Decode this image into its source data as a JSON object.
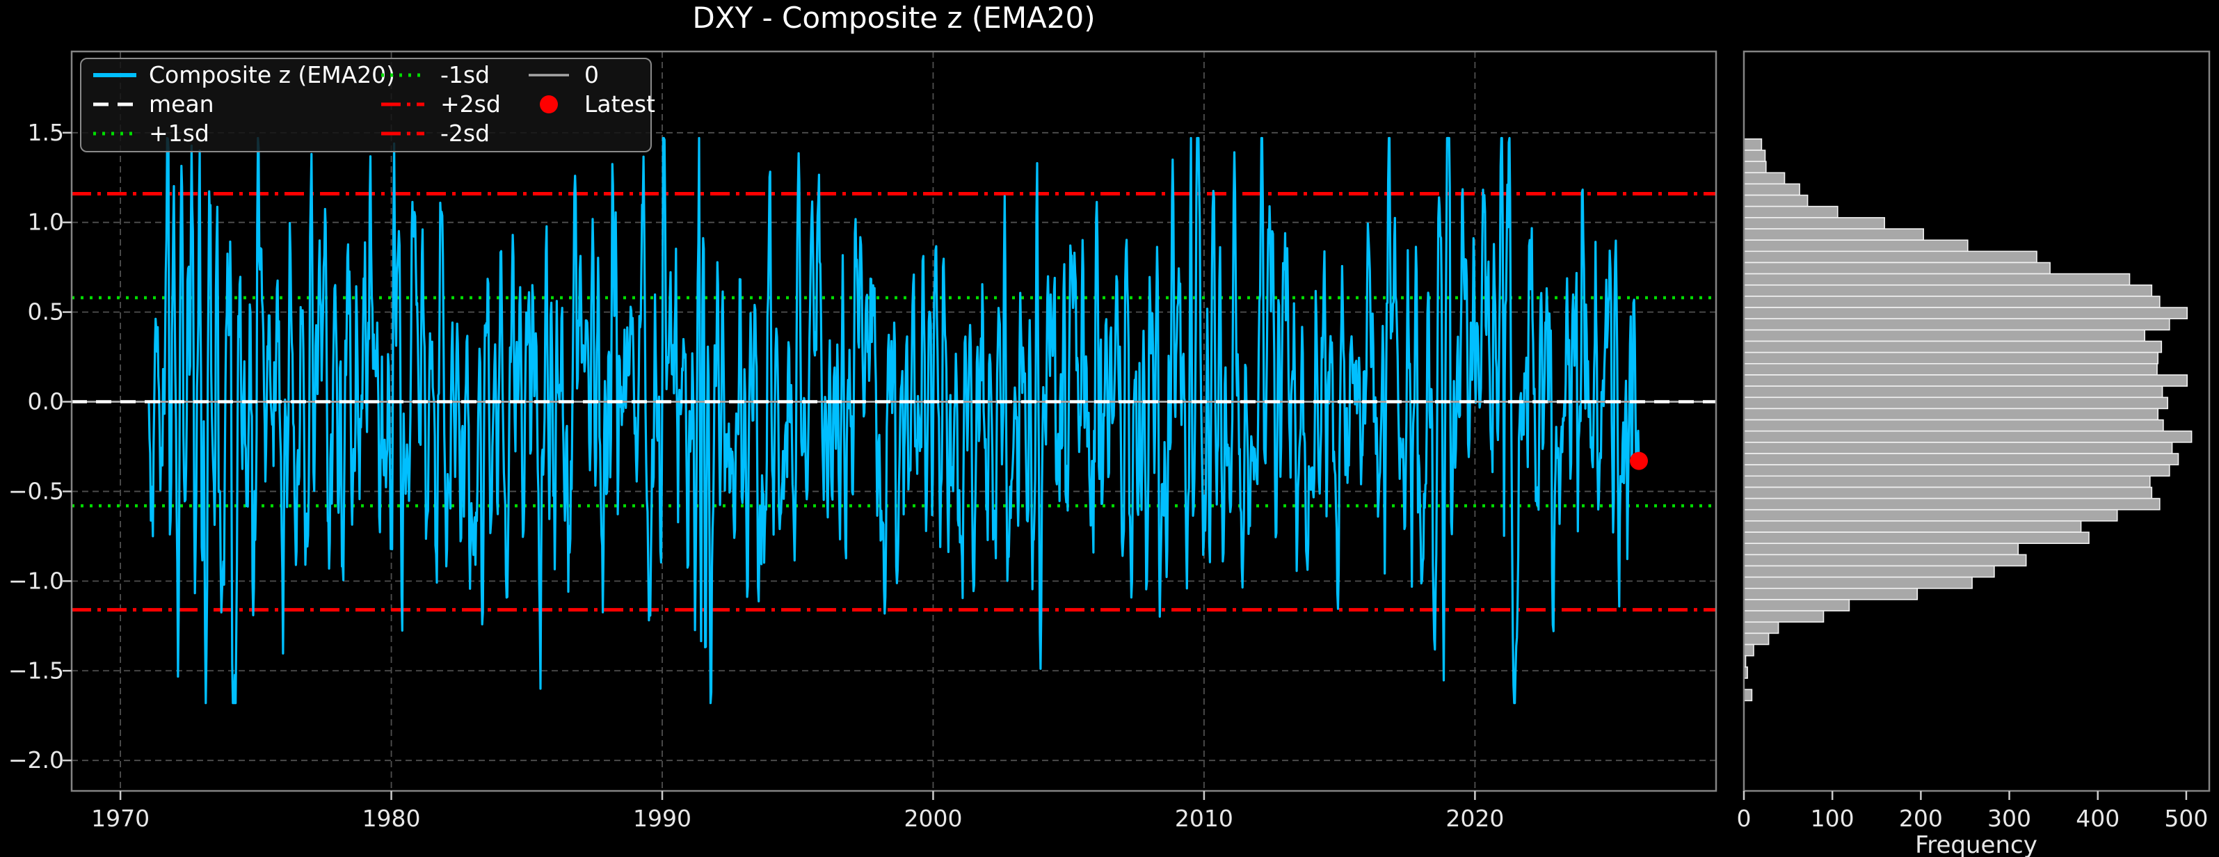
{
  "title": "DXY - Composite z (EMA20)",
  "colors": {
    "background": "#000000",
    "text": "#ffffff",
    "tick_text": "#e8e8e8",
    "series": "#00bfff",
    "mean": "#ffffff",
    "sd1": "#00dd00",
    "sd2": "#ff0000",
    "zero": "#a6a6a6",
    "latest": "#ff0000",
    "grid": "#4f4f4f",
    "spine": "#848484",
    "tick": "#cccccc",
    "hist_fill": "#a8a8a8",
    "hist_edge": "#f0f0f0",
    "legend_bg": "#141414",
    "legend_border": "#8a8a8a"
  },
  "chart_data": {
    "type": "line",
    "title": "DXY - Composite z (EMA20)",
    "panels": [
      {
        "name": "timeseries",
        "type": "line",
        "x_tick_labels": [
          "1970",
          "1980",
          "1990",
          "2000",
          "2010",
          "2020"
        ],
        "x_tick_values": [
          1970,
          1980,
          1990,
          2000,
          2010,
          2020
        ],
        "y_tick_labels": [
          "1.5",
          "1.0",
          "0.5",
          "0.0",
          "−0.5",
          "−1.0",
          "−1.5",
          "−2.0"
        ],
        "y_tick_values": [
          1.5,
          1.0,
          0.5,
          0.0,
          -0.5,
          -1.0,
          -1.5,
          -2.0
        ],
        "xlim": [
          1968.2,
          2028.9
        ],
        "ylim": [
          -2.17,
          1.953
        ],
        "grid": true,
        "series": {
          "name": "Composite z (EMA20)",
          "x_start": 1971.05,
          "x_end": 2026.05,
          "n_points": 2200,
          "seed": 1973,
          "mean": 0.0,
          "sd": 0.58,
          "min": -1.68,
          "max": 1.47,
          "keypoints": [
            [
              1971.05,
              0.0
            ],
            [
              1973.15,
              -1.68
            ],
            [
              1980.1,
              1.44
            ],
            [
              1985.5,
              -1.6
            ],
            [
              1991.35,
              1.47
            ],
            [
              2008.85,
              1.35
            ],
            [
              2026.05,
              -0.33
            ]
          ]
        },
        "reference_lines": [
          {
            "name": "plus2sd",
            "label": "+2sd",
            "value": 1.16,
            "style": "dashdot",
            "color_key": "sd2",
            "width": 5
          },
          {
            "name": "minus2sd",
            "label": "-2sd",
            "value": -1.16,
            "style": "dashdot",
            "color_key": "sd2",
            "width": 5
          },
          {
            "name": "plus1sd",
            "label": "+1sd",
            "value": 0.58,
            "style": "dotted",
            "color_key": "sd1",
            "width": 4.5
          },
          {
            "name": "minus1sd",
            "label": "-1sd",
            "value": -0.58,
            "style": "dotted",
            "color_key": "sd1",
            "width": 4.5
          },
          {
            "name": "zero",
            "label": "0",
            "value": 0.0,
            "style": "solid",
            "color_key": "zero",
            "width": 3
          },
          {
            "name": "mean",
            "label": "mean",
            "value": 0.0,
            "style": "dashed",
            "color_key": "mean",
            "width": 4.5
          }
        ],
        "latest": {
          "x": 2026.05,
          "y": -0.33,
          "label": "Latest"
        },
        "legend": {
          "entries": [
            {
              "label": "Composite z (EMA20)",
              "kind": "line",
              "style": "solid",
              "color_key": "series",
              "col": 0,
              "row": 0
            },
            {
              "label": "mean",
              "kind": "line",
              "style": "dashed",
              "color_key": "mean",
              "col": 0,
              "row": 1
            },
            {
              "label": "+1sd",
              "kind": "line",
              "style": "dotted",
              "color_key": "sd1",
              "col": 0,
              "row": 2
            },
            {
              "label": "-1sd",
              "kind": "line",
              "style": "dotted",
              "color_key": "sd1",
              "col": 1,
              "row": 0
            },
            {
              "label": "+2sd",
              "kind": "line",
              "style": "dashdot",
              "color_key": "sd2",
              "col": 1,
              "row": 1
            },
            {
              "label": "-2sd",
              "kind": "line",
              "style": "dashdot",
              "color_key": "sd2",
              "col": 1,
              "row": 2
            },
            {
              "label": "0",
              "kind": "line",
              "style": "solid",
              "color_key": "zero",
              "col": 2,
              "row": 0
            },
            {
              "label": "Latest",
              "kind": "marker",
              "style": "dot",
              "color_key": "latest",
              "col": 2,
              "row": 1
            }
          ]
        }
      },
      {
        "name": "histogram",
        "type": "bar-horizontal",
        "xlabel": "Frequency",
        "x_tick_labels": [
          "0",
          "100",
          "200",
          "300",
          "400",
          "500"
        ],
        "x_tick_values": [
          0,
          100,
          200,
          300,
          400,
          500
        ],
        "xlim": [
          0,
          526
        ],
        "ylim": [
          -2.17,
          1.953
        ],
        "grid": false,
        "bins": {
          "value_min": -1.667,
          "value_max": 1.465,
          "count": 50,
          "frequencies_top_to_bottom": [
            20,
            24,
            25,
            46,
            63,
            72,
            106,
            159,
            203,
            253,
            331,
            346,
            436,
            461,
            470,
            501,
            481,
            453,
            472,
            468,
            467,
            501,
            473,
            479,
            468,
            474,
            506,
            484,
            491,
            481,
            459,
            461,
            470,
            422,
            381,
            390,
            310,
            319,
            283,
            258,
            196,
            119,
            90,
            39,
            28,
            11,
            2,
            4,
            0,
            9
          ]
        }
      }
    ]
  }
}
